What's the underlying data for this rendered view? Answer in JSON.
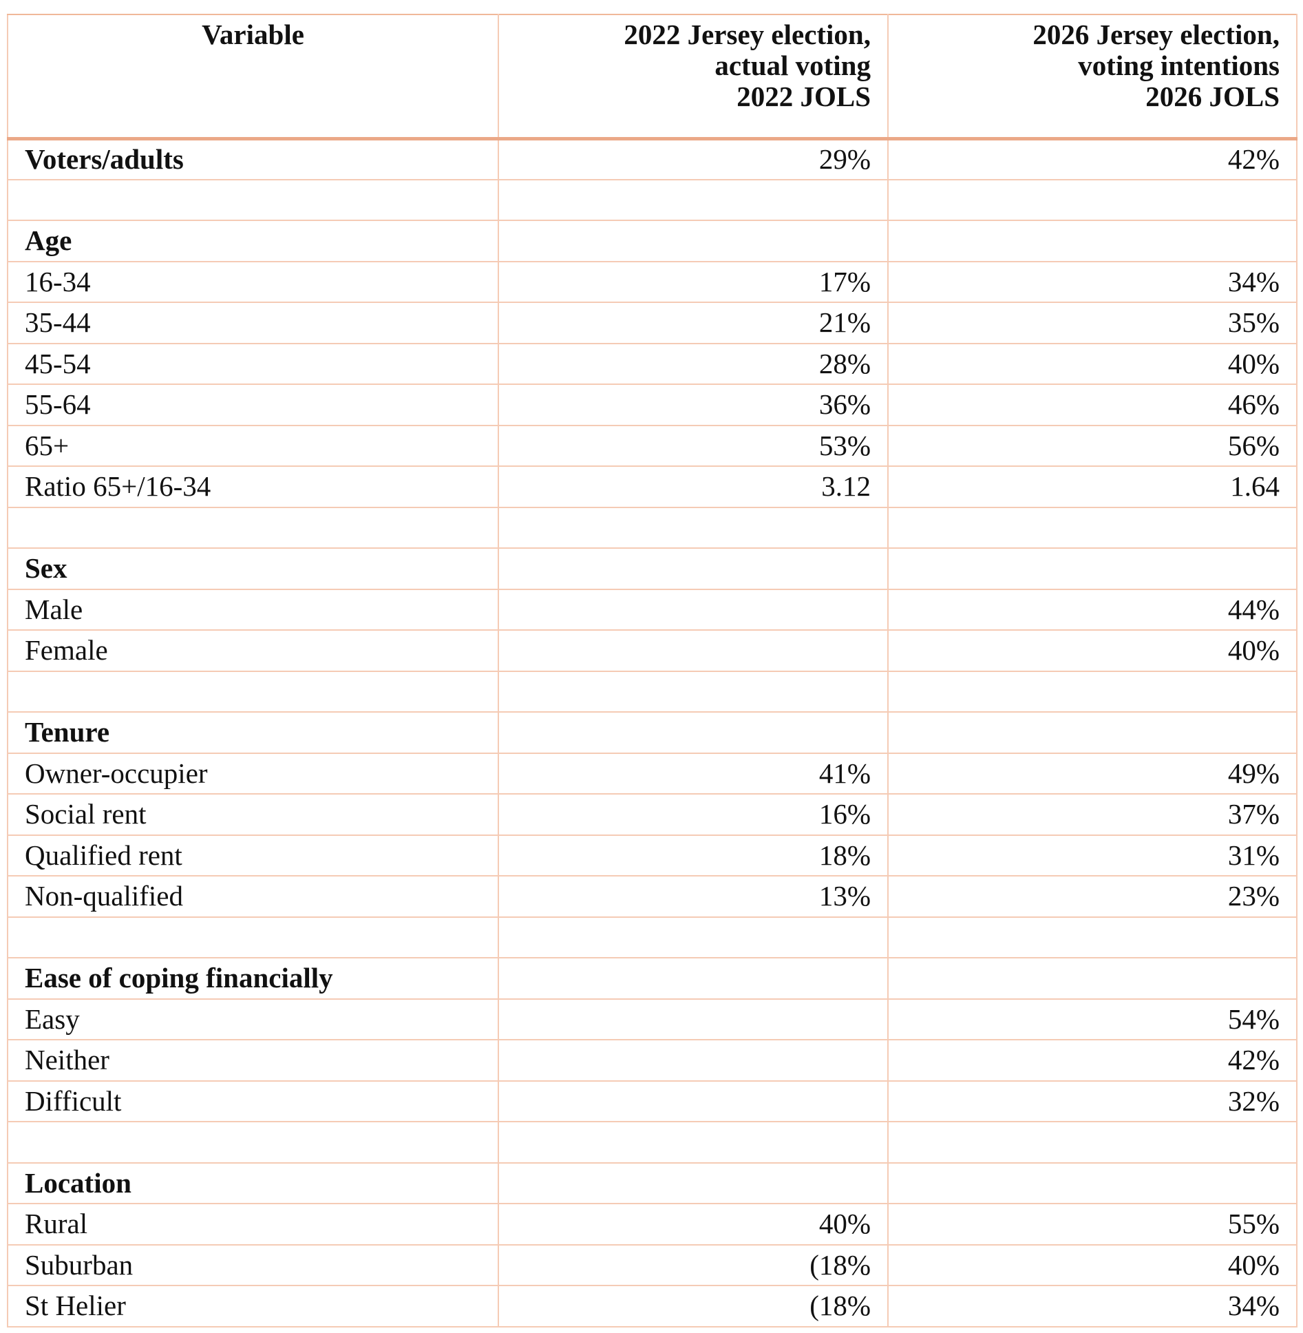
{
  "header": {
    "columns": [
      [
        "Variable"
      ],
      [
        "2022 Jersey election,",
        "actual voting",
        "2022 JOLS"
      ],
      [
        "2026 Jersey election,",
        "voting intentions",
        "2026 JOLS"
      ]
    ]
  },
  "sections": [
    {
      "label": "Voters/adults",
      "values": [
        "29%",
        "42%"
      ]
    },
    {
      "heading": "Age",
      "rows": [
        [
          "16-34",
          "17%",
          "34%"
        ],
        [
          "35-44",
          "21%",
          "35%"
        ],
        [
          "45-54",
          "28%",
          "40%"
        ],
        [
          "55-64",
          "36%",
          "46%"
        ],
        [
          "65+",
          "53%",
          "56%"
        ],
        [
          "Ratio 65+/16-34",
          "3.12",
          "1.64"
        ]
      ]
    },
    {
      "heading": "Sex",
      "rows": [
        [
          "Male",
          null,
          "44%"
        ],
        [
          "Female",
          null,
          "40%"
        ]
      ]
    },
    {
      "heading": "Tenure",
      "rows": [
        [
          "Owner-occupier",
          "41%",
          "49%"
        ],
        [
          "Social rent",
          "16%",
          "37%"
        ],
        [
          "Qualified rent",
          "18%",
          "31%"
        ],
        [
          "Non-qualified",
          "13%",
          "23%"
        ]
      ]
    },
    {
      "heading": "Ease of coping financially",
      "rows": [
        [
          "Easy",
          null,
          "54%"
        ],
        [
          "Neither",
          null,
          "42%"
        ],
        [
          "Difficult",
          null,
          "32%"
        ]
      ]
    },
    {
      "heading": "Location",
      "rows": [
        [
          "Rural",
          "40%",
          "55%"
        ],
        [
          "Suburban",
          "(18%",
          "40%"
        ],
        [
          "St Helier",
          "(18%",
          "34%"
        ]
      ]
    }
  ]
}
